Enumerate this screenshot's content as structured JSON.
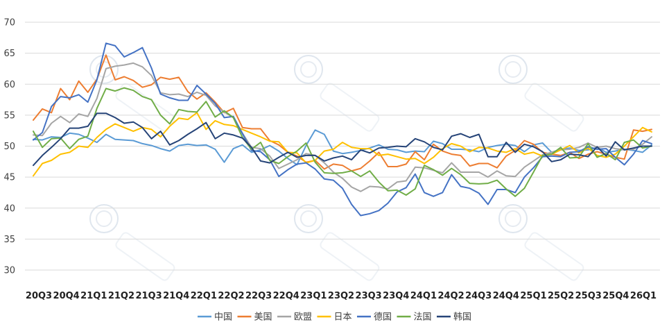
{
  "chart_data": {
    "type": "line",
    "title": "",
    "xlabel": "",
    "ylabel": "",
    "ylim": [
      30,
      70
    ],
    "yticks": [
      30,
      35,
      40,
      45,
      50,
      55,
      60,
      65,
      70
    ],
    "grid": "horizontal",
    "legend_position": "bottom",
    "x_tick_labels": [
      "20Q3",
      "20Q4",
      "21Q1",
      "21Q2",
      "21Q3",
      "21Q4",
      "22Q1",
      "22Q2",
      "22Q3",
      "22Q4",
      "23Q1",
      "23Q2",
      "23Q3",
      "23Q4",
      "24Q1",
      "24Q2",
      "24Q3",
      "24Q4",
      "25Q1",
      "25Q2",
      "25Q3",
      "25Q4",
      "26Q1"
    ],
    "x": [
      "20M7",
      "20M8",
      "20M9",
      "20M10",
      "20M11",
      "20M12",
      "21M1",
      "21M2",
      "21M3",
      "21M4",
      "21M5",
      "21M6",
      "21M7",
      "21M8",
      "21M9",
      "21M10",
      "21M11",
      "21M12",
      "22M1",
      "22M2",
      "22M3",
      "22M4",
      "22M5",
      "22M6",
      "22M7",
      "22M8",
      "22M9",
      "22M10",
      "22M11",
      "22M12",
      "23M1",
      "23M2",
      "23M3",
      "23M4",
      "23M5",
      "23M6",
      "23M7",
      "23M8",
      "23M9",
      "23M10",
      "23M11",
      "23M12",
      "24M1",
      "24M2",
      "24M3",
      "24M4",
      "24M5",
      "24M6",
      "24M7",
      "24M8",
      "24M9",
      "24M10",
      "24M11",
      "24M12",
      "25M1",
      "25M2",
      "25M3",
      "25M4",
      "25M5",
      "25M6",
      "25M7",
      "25M8",
      "25M9",
      "25M10",
      "25M11",
      "25M12",
      "26M1",
      "26M2",
      "26M3"
    ],
    "series": [
      {
        "name": "中国",
        "color": "#5b9bd5",
        "values": [
          51.1,
          51.0,
          51.5,
          51.4,
          52.1,
          51.9,
          51.3,
          50.6,
          51.9,
          51.1,
          51.0,
          50.9,
          50.4,
          50.1,
          49.6,
          49.2,
          50.1,
          50.3,
          50.1,
          50.2,
          49.5,
          47.4,
          49.6,
          50.2,
          49.0,
          49.4,
          50.1,
          49.2,
          48.0,
          47.0,
          50.1,
          52.6,
          51.9,
          49.2,
          48.8,
          49.0,
          49.3,
          49.7,
          50.2,
          49.5,
          49.4,
          49.0,
          49.2,
          49.1,
          50.8,
          50.4,
          49.5,
          49.5,
          49.4,
          49.1,
          49.8,
          50.1,
          50.3,
          50.1,
          49.1,
          50.2,
          50.5,
          49.0,
          49.5,
          49.7,
          49.3,
          49.4,
          49.8,
          49.0,
          49.2,
          49.5,
          49.3,
          49.0,
          50.2
        ]
      },
      {
        "name": "美国",
        "color": "#ed7d31",
        "values": [
          54.2,
          56.0,
          55.4,
          59.3,
          57.5,
          60.5,
          58.7,
          60.8,
          64.7,
          60.7,
          61.2,
          60.6,
          59.5,
          59.9,
          61.1,
          60.8,
          61.1,
          58.8,
          57.6,
          58.6,
          57.1,
          55.4,
          56.1,
          53.0,
          52.8,
          52.8,
          50.9,
          50.2,
          49.0,
          48.4,
          47.4,
          47.7,
          46.3,
          47.1,
          46.9,
          46.0,
          46.4,
          47.6,
          49.0,
          46.7,
          46.7,
          47.1,
          49.1,
          47.8,
          50.3,
          49.2,
          48.7,
          48.5,
          46.8,
          47.2,
          47.2,
          46.5,
          48.4,
          49.3,
          50.9,
          50.3,
          49.0,
          48.7,
          48.5,
          49.0,
          48.0,
          48.7,
          49.1,
          48.7,
          48.2,
          47.9,
          52.6,
          52.4,
          52.7
        ]
      },
      {
        "name": "欧盟",
        "color": "#a5a5a5",
        "values": [
          51.8,
          51.7,
          53.7,
          54.8,
          53.8,
          55.2,
          54.8,
          57.7,
          62.5,
          62.9,
          63.1,
          63.4,
          62.8,
          61.4,
          58.6,
          58.3,
          58.4,
          58.0,
          58.7,
          58.2,
          56.5,
          55.5,
          54.6,
          52.1,
          49.8,
          49.6,
          48.4,
          46.4,
          47.1,
          47.8,
          48.8,
          48.5,
          47.3,
          45.8,
          44.8,
          43.4,
          42.7,
          43.5,
          43.4,
          43.1,
          44.2,
          44.4,
          46.6,
          46.5,
          46.1,
          45.7,
          47.3,
          45.8,
          45.8,
          45.8,
          45.0,
          46.0,
          45.2,
          45.1,
          46.6,
          47.6,
          48.6,
          49.0,
          49.4,
          49.5,
          49.8,
          50.5,
          49.8,
          50.0,
          49.6,
          49.4,
          49.5,
          50.3,
          51.5
        ]
      },
      {
        "name": "日本",
        "color": "#ffc000",
        "values": [
          45.2,
          47.2,
          47.7,
          48.7,
          49.0,
          50.0,
          49.8,
          51.4,
          52.7,
          53.6,
          53.0,
          52.4,
          53.0,
          52.7,
          51.5,
          53.2,
          54.5,
          54.3,
          55.4,
          52.7,
          54.1,
          53.5,
          53.3,
          52.7,
          52.1,
          51.5,
          50.8,
          50.7,
          49.0,
          48.9,
          47.3,
          47.7,
          49.2,
          49.5,
          50.6,
          49.8,
          49.6,
          49.6,
          48.5,
          48.7,
          48.3,
          47.9,
          48.0,
          47.2,
          48.2,
          49.6,
          50.4,
          50.0,
          49.1,
          49.8,
          49.7,
          49.2,
          49.0,
          49.6,
          48.7,
          49.0,
          48.4,
          48.7,
          49.4,
          50.1,
          48.9,
          49.7,
          48.5,
          48.2,
          48.7,
          50.0,
          51.5,
          53.0,
          52.3
        ]
      },
      {
        "name": "德国",
        "color": "#4472c4",
        "values": [
          51.0,
          52.2,
          56.4,
          58.0,
          57.8,
          58.3,
          57.1,
          60.7,
          66.6,
          66.2,
          64.4,
          65.1,
          65.9,
          62.6,
          58.4,
          57.8,
          57.4,
          57.4,
          59.8,
          58.4,
          56.9,
          54.6,
          54.8,
          52.0,
          49.3,
          49.1,
          47.8,
          45.1,
          46.2,
          47.1,
          47.3,
          46.3,
          44.7,
          44.5,
          43.2,
          40.6,
          38.8,
          39.1,
          39.6,
          40.8,
          42.6,
          43.3,
          45.5,
          42.5,
          41.9,
          42.5,
          45.4,
          43.5,
          43.2,
          42.4,
          40.6,
          43.0,
          43.0,
          42.5,
          45.0,
          46.5,
          48.3,
          48.4,
          48.3,
          49.0,
          49.1,
          49.9,
          49.5,
          49.6,
          48.2,
          47.0,
          48.7,
          50.9,
          50.4
        ]
      },
      {
        "name": "法国",
        "color": "#70ad47",
        "values": [
          52.4,
          49.8,
          51.2,
          51.3,
          49.6,
          51.1,
          51.6,
          56.1,
          59.3,
          58.9,
          59.4,
          59.0,
          58.0,
          57.5,
          55.0,
          53.6,
          55.9,
          55.6,
          55.5,
          57.2,
          54.7,
          55.7,
          54.6,
          51.4,
          49.5,
          50.6,
          47.7,
          47.2,
          48.3,
          49.2,
          50.5,
          47.4,
          45.7,
          45.6,
          45.7,
          46.0,
          45.1,
          46.0,
          44.2,
          42.8,
          42.9,
          42.1,
          43.1,
          46.9,
          46.2,
          45.3,
          46.4,
          45.4,
          44.0,
          43.9,
          44.0,
          44.5,
          43.1,
          41.9,
          43.2,
          45.8,
          48.5,
          48.7,
          49.8,
          48.1,
          48.2,
          50.4,
          48.2,
          48.8,
          47.8,
          50.6,
          51.0,
          49.7,
          50.0
        ]
      },
      {
        "name": "韩国",
        "color": "#264478",
        "values": [
          46.9,
          48.5,
          49.8,
          51.2,
          52.9,
          52.9,
          53.2,
          55.3,
          55.3,
          54.6,
          53.7,
          53.9,
          53.0,
          51.2,
          52.4,
          50.2,
          50.9,
          51.9,
          52.8,
          53.8,
          51.2,
          52.1,
          51.8,
          51.3,
          49.8,
          47.6,
          47.3,
          48.2,
          49.0,
          48.2,
          48.5,
          48.5,
          47.6,
          48.1,
          48.4,
          47.8,
          49.4,
          48.9,
          49.7,
          49.8,
          50.0,
          49.9,
          51.2,
          50.7,
          49.8,
          49.4,
          51.6,
          52.0,
          51.4,
          51.9,
          48.3,
          48.3,
          50.6,
          49.0,
          50.3,
          49.9,
          49.1,
          47.5,
          47.8,
          48.7,
          48.6,
          48.3,
          49.9,
          48.4,
          50.7,
          49.4,
          49.7,
          50.0,
          50.0
        ]
      }
    ]
  }
}
